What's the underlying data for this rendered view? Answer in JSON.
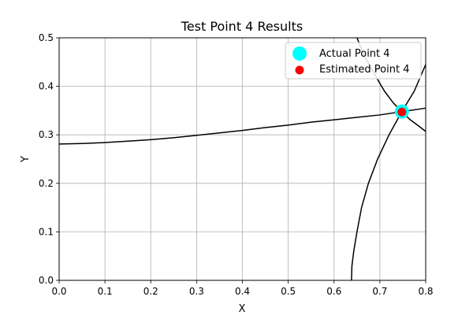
{
  "chart_data": {
    "type": "scatter",
    "title": "Test Point 4 Results",
    "xlabel": "X",
    "ylabel": "Y",
    "xlim": [
      0.0,
      0.8
    ],
    "ylim": [
      0.0,
      0.5
    ],
    "xticks": [
      "0.0",
      "0.1",
      "0.2",
      "0.3",
      "0.4",
      "0.5",
      "0.6",
      "0.7",
      "0.8"
    ],
    "yticks": [
      "0.0",
      "0.1",
      "0.2",
      "0.3",
      "0.4",
      "0.5"
    ],
    "grid": true,
    "legend_position": "top-right",
    "series": [
      {
        "name": "Actual Point 4",
        "color": "#00ffff",
        "marker": "circle-large",
        "points": [
          [
            0.748,
            0.348
          ]
        ]
      },
      {
        "name": "Estimated Point 4",
        "color": "#ff0000",
        "marker": "circle-small",
        "points": [
          [
            0.748,
            0.347
          ]
        ]
      }
    ],
    "curves": [
      {
        "color": "#000000",
        "points": [
          [
            0.0,
            0.281
          ],
          [
            0.05,
            0.282
          ],
          [
            0.1,
            0.284
          ],
          [
            0.15,
            0.287
          ],
          [
            0.2,
            0.29
          ],
          [
            0.25,
            0.294
          ],
          [
            0.3,
            0.299
          ],
          [
            0.35,
            0.304
          ],
          [
            0.4,
            0.309
          ],
          [
            0.45,
            0.315
          ],
          [
            0.5,
            0.32
          ],
          [
            0.55,
            0.326
          ],
          [
            0.6,
            0.331
          ],
          [
            0.65,
            0.336
          ],
          [
            0.7,
            0.341
          ],
          [
            0.75,
            0.348
          ],
          [
            0.8,
            0.355
          ]
        ]
      },
      {
        "color": "#000000",
        "points": [
          [
            0.638,
            0.0
          ],
          [
            0.639,
            0.03
          ],
          [
            0.643,
            0.06
          ],
          [
            0.65,
            0.1
          ],
          [
            0.66,
            0.15
          ],
          [
            0.675,
            0.2
          ],
          [
            0.695,
            0.25
          ],
          [
            0.72,
            0.3
          ],
          [
            0.748,
            0.348
          ],
          [
            0.775,
            0.39
          ],
          [
            0.8,
            0.445
          ]
        ]
      },
      {
        "color": "#000000",
        "points": [
          [
            0.65,
            0.5
          ],
          [
            0.665,
            0.465
          ],
          [
            0.685,
            0.43
          ],
          [
            0.71,
            0.39
          ],
          [
            0.73,
            0.365
          ],
          [
            0.748,
            0.348
          ],
          [
            0.765,
            0.332
          ],
          [
            0.785,
            0.318
          ],
          [
            0.8,
            0.307
          ]
        ]
      }
    ]
  }
}
